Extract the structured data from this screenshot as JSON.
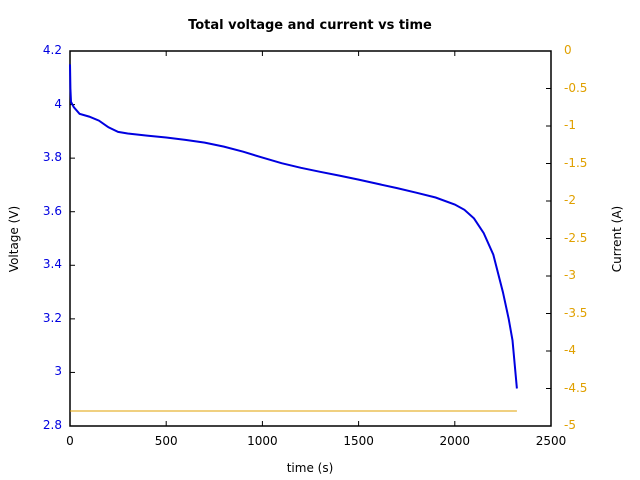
{
  "chart_data": {
    "type": "line",
    "title": "Total voltage and current vs time",
    "xlabel": "time (s)",
    "ylabel": "Voltage (V)",
    "y2label": "Current (A)",
    "xlim": [
      0,
      2500
    ],
    "ylim": [
      2.8,
      4.2
    ],
    "y2lim": [
      -5,
      0
    ],
    "xticks": [
      "0",
      "500",
      "1000",
      "1500",
      "2000",
      "2500"
    ],
    "yticks": [
      "2.8",
      "3",
      "3.2",
      "3.4",
      "3.6",
      "3.8",
      "4",
      "4.2"
    ],
    "y2ticks": [
      "-5",
      "-4.5",
      "-4",
      "-3.5",
      "-3",
      "-2.5",
      "-2",
      "-1.5",
      "-1",
      "-0.5",
      "0"
    ],
    "grid": false,
    "colors": {
      "voltage": "#0000e0",
      "current": "#e0a000",
      "axis_left": "#0000e0",
      "axis_right": "#e0a000"
    },
    "series": [
      {
        "name": "Voltage",
        "axis": "left",
        "x": [
          0,
          2,
          5,
          20,
          50,
          100,
          150,
          200,
          250,
          300,
          400,
          500,
          600,
          700,
          800,
          900,
          1000,
          1100,
          1200,
          1300,
          1400,
          1500,
          1600,
          1700,
          1800,
          1900,
          2000,
          2050,
          2100,
          2150,
          2200,
          2250,
          2280,
          2300,
          2323
        ],
        "values": [
          4.15,
          4.06,
          4.01,
          3.99,
          3.965,
          3.955,
          3.94,
          3.915,
          3.898,
          3.892,
          3.884,
          3.877,
          3.868,
          3.858,
          3.843,
          3.824,
          3.802,
          3.781,
          3.764,
          3.749,
          3.735,
          3.72,
          3.704,
          3.688,
          3.671,
          3.653,
          3.627,
          3.607,
          3.575,
          3.52,
          3.44,
          3.3,
          3.2,
          3.12,
          2.94
        ]
      },
      {
        "name": "Current",
        "axis": "right",
        "x": [
          0,
          2323
        ],
        "values": [
          -4.8,
          -4.8
        ]
      }
    ]
  }
}
